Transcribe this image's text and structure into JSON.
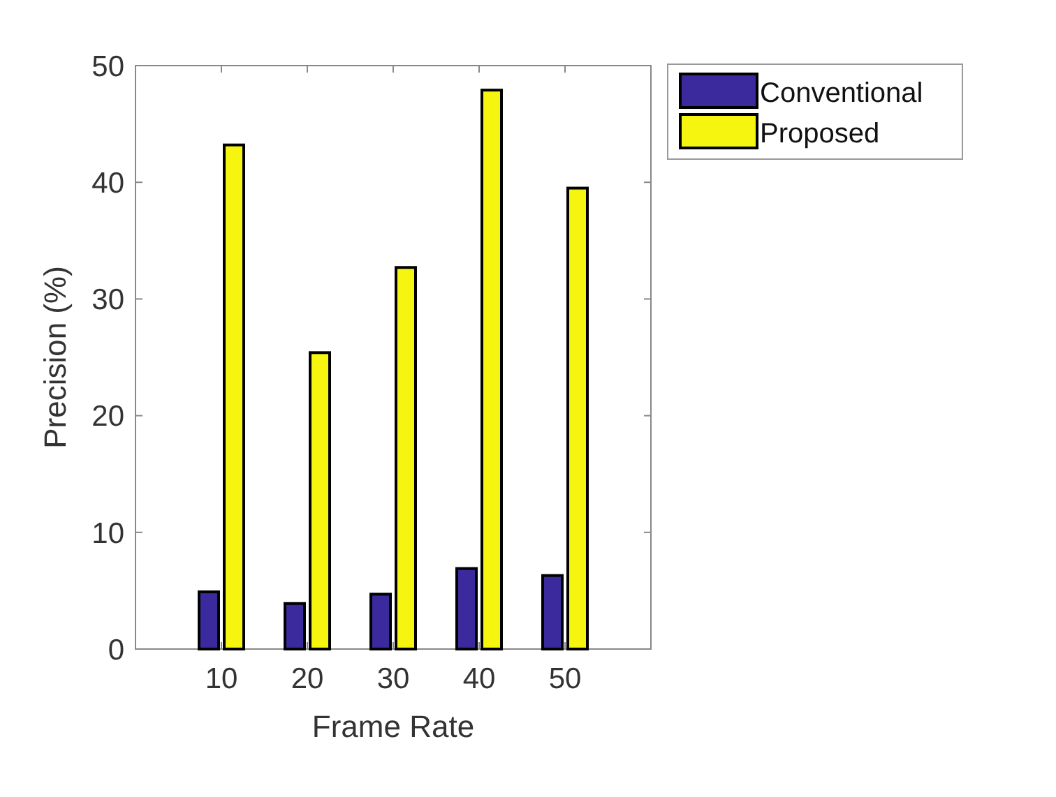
{
  "chart_data": {
    "type": "bar",
    "xlabel": "Frame Rate",
    "ylabel": "Precision (%)",
    "categories": [
      "10",
      "20",
      "30",
      "40",
      "50"
    ],
    "series": [
      {
        "name": "Conventional",
        "color": "#3b2a9e",
        "values": [
          4.9,
          3.9,
          4.7,
          6.9,
          6.3
        ]
      },
      {
        "name": "Proposed",
        "color": "#f5f510",
        "values": [
          43.2,
          25.4,
          32.7,
          47.9,
          39.5
        ]
      }
    ],
    "ylim": [
      0,
      50
    ],
    "yticks": [
      0,
      10,
      20,
      30,
      40,
      50
    ],
    "grid": false,
    "legend": "top right"
  }
}
